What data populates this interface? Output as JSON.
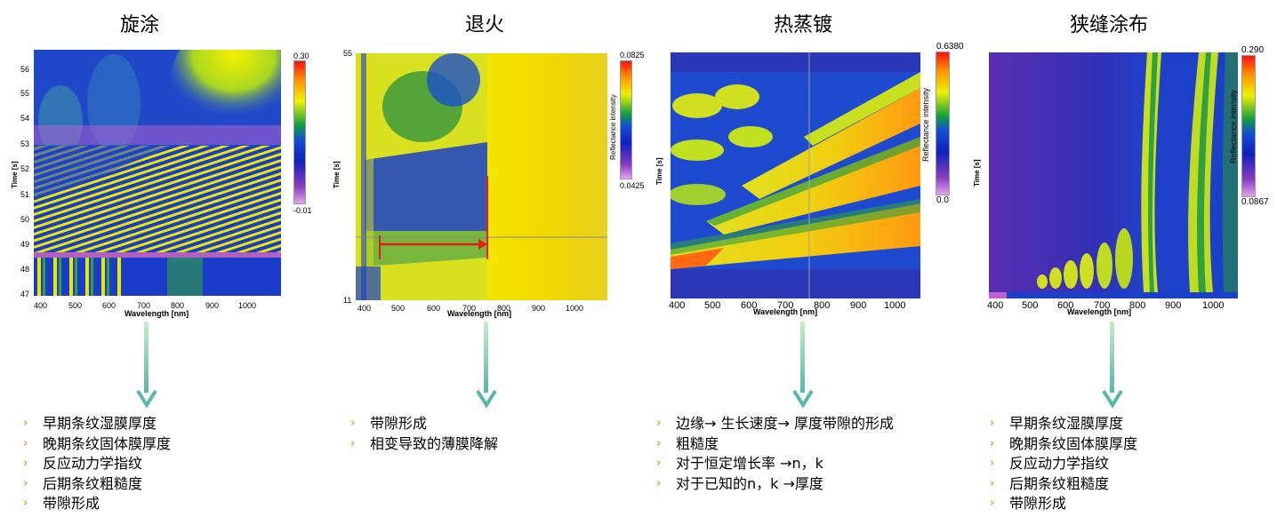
{
  "panels": [
    {
      "title": "旋涂",
      "colorbar": {
        "max": "0.30",
        "min": "-0.01"
      },
      "y_ticks": [
        "56",
        "55",
        "54",
        "53",
        "52",
        "51",
        "50",
        "49",
        "48",
        "47"
      ],
      "y_label": "Time [s]",
      "x_ticks": [
        "400",
        "500",
        "600",
        "700",
        "800",
        "900",
        "1000"
      ],
      "x_label": "Wavelength [nm]",
      "bullets": [
        "早期条纹湿膜厚度",
        "晚期条纹固体膜厚度",
        "反应动力学指纹",
        "后期条纹粗糙度",
        "带隙形成"
      ]
    },
    {
      "title": "退火",
      "colorbar": {
        "max": "0.0825",
        "min": "0.0425",
        "label": "Reflectance intensity"
      },
      "y_ticks": [
        "55",
        "11"
      ],
      "y_label": "Time [s]",
      "x_ticks": [
        "400",
        "500",
        "600",
        "700",
        "800",
        "900",
        "1000"
      ],
      "x_label": "Wavelength [nm]",
      "bullets": [
        "带隙形成",
        "相变导致的薄膜降解"
      ]
    },
    {
      "title": "热蒸镀",
      "colorbar": {
        "max": "0.6380",
        "min": "0.0",
        "label": "Reflectance intensity"
      },
      "y_label": "Time [s]",
      "x_ticks": [
        "400",
        "500",
        "600",
        "700",
        "800",
        "900",
        "1000"
      ],
      "x_label": "Wavelength [nm]",
      "bullets": [
        "边缘→ 生长速度→ 厚度带隙的形成",
        "粗糙度",
        "对于恒定增长率 →n，k",
        "对于已知的n，k →厚度"
      ]
    },
    {
      "title": "狭缝涂布",
      "colorbar": {
        "max": "0.290",
        "min": "0.0867",
        "label": "Reflectance intensity"
      },
      "y_label": "Time [s]",
      "x_ticks": [
        "400",
        "500",
        "600",
        "700",
        "800",
        "900",
        "1000"
      ],
      "x_label": "Wavelength [nm]",
      "bullets": [
        "早期条纹湿膜厚度",
        "晚期条纹固体膜厚度",
        "反应动力学指纹",
        "后期条纹粗糙度",
        "带隙形成"
      ]
    }
  ],
  "colors": {
    "bullet": "#f0a030",
    "arrow_top": "#a8e0b8",
    "arrow_bottom": "#4fa89a",
    "annotation": "#e02020"
  },
  "chart_data": [
    {
      "type": "heatmap",
      "title": "旋涂",
      "xlabel": "Wavelength [nm]",
      "ylabel": "Time [s]",
      "xlim": [
        380,
        1100
      ],
      "ylim": [
        47,
        56.8
      ],
      "zlim": [
        -0.01,
        0.3
      ]
    },
    {
      "type": "heatmap",
      "title": "退火",
      "xlabel": "Wavelength [nm]",
      "ylabel": "Time [s]",
      "xlim": [
        380,
        1100
      ],
      "ylim": [
        11,
        55
      ],
      "zlim": [
        0.0425,
        0.0825
      ]
    },
    {
      "type": "heatmap",
      "title": "热蒸镀",
      "xlabel": "Wavelength [nm]",
      "ylabel": "Time [s]",
      "xlim": [
        390,
        1060
      ],
      "zlim": [
        0.0,
        0.638
      ]
    },
    {
      "type": "heatmap",
      "title": "狭缝涂布",
      "xlabel": "Wavelength [nm]",
      "ylabel": "Time [s]",
      "xlim": [
        390,
        1060
      ],
      "zlim": [
        0.0867,
        0.29
      ]
    }
  ]
}
